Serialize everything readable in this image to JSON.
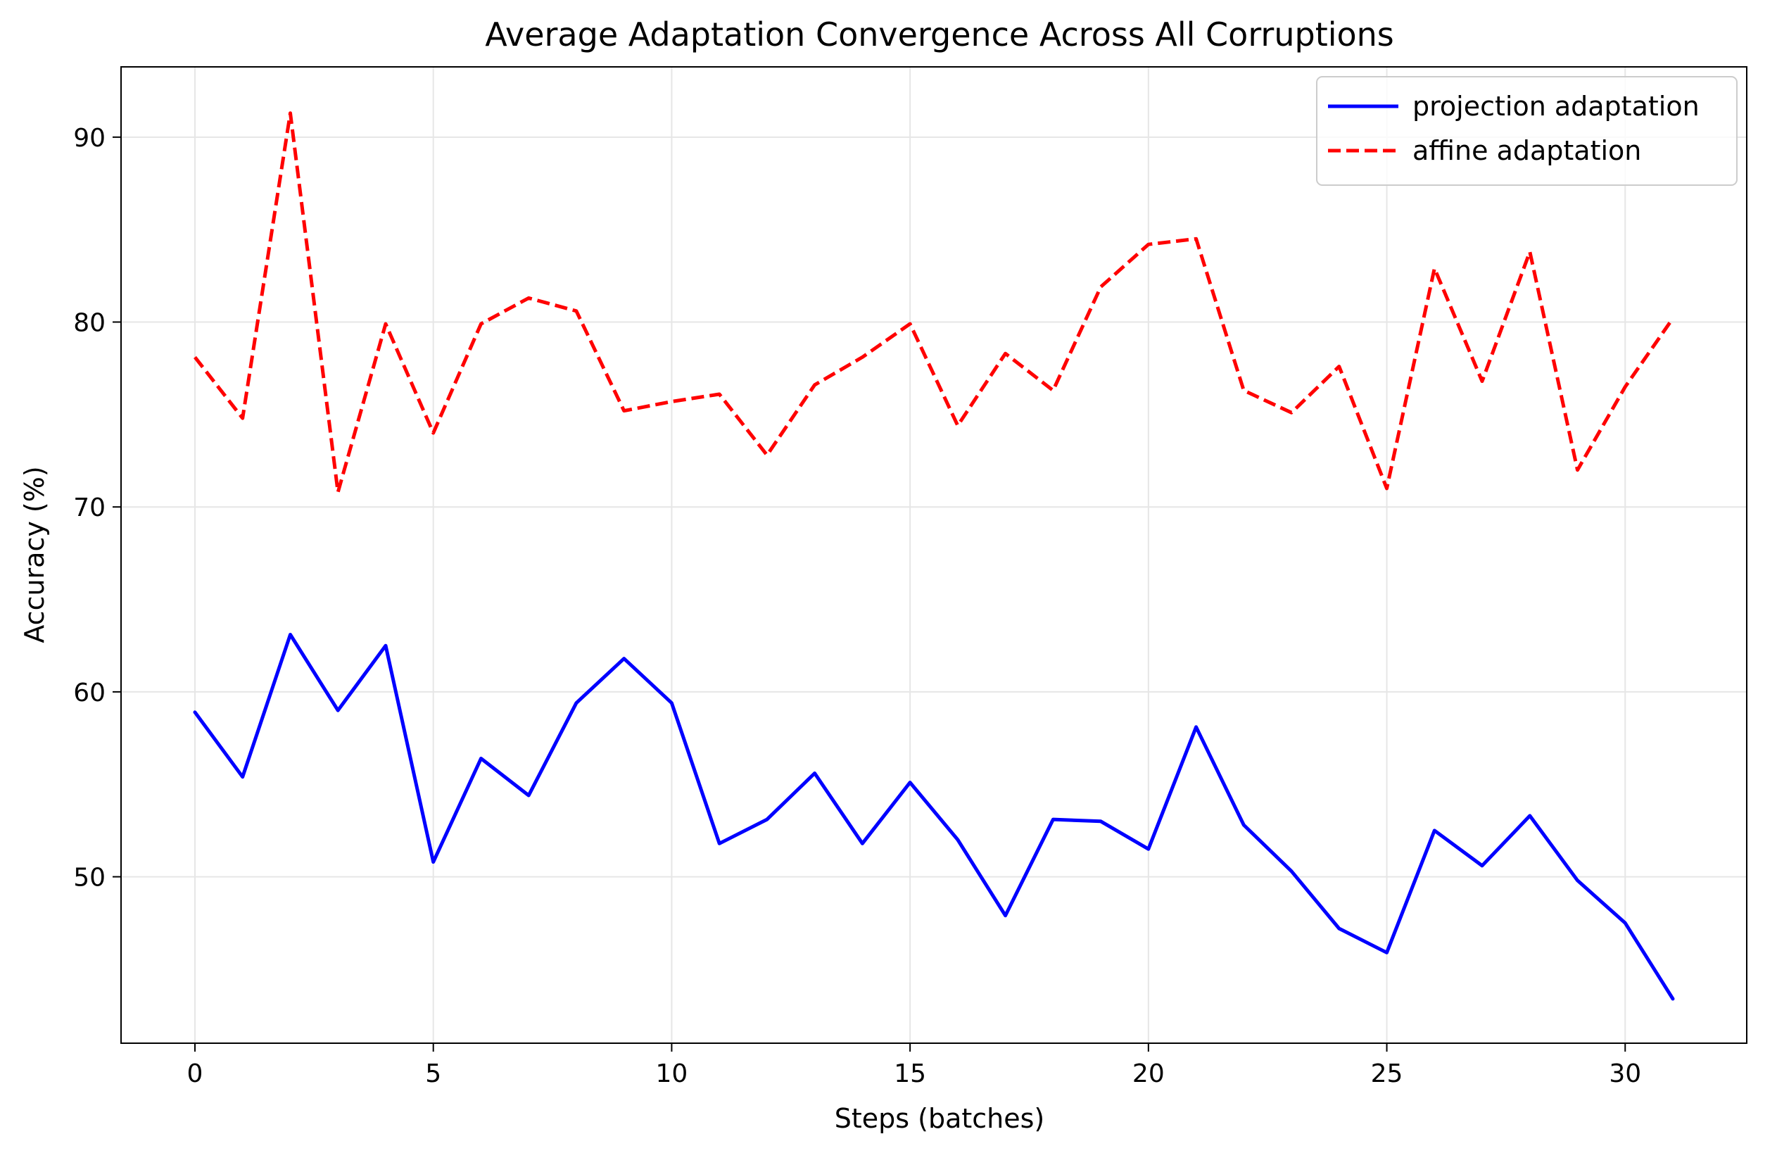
{
  "chart_data": {
    "type": "line",
    "title": "Average Adaptation Convergence Across All Corruptions",
    "xlabel": "Steps (batches)",
    "ylabel": "Accuracy (%)",
    "xlim": [
      -1.55,
      32.55
    ],
    "ylim": [
      41.0,
      93.8
    ],
    "xticks": [
      0,
      5,
      10,
      15,
      20,
      25,
      30
    ],
    "yticks": [
      50,
      60,
      70,
      80,
      90
    ],
    "grid": true,
    "legend_position": "top-right",
    "x": [
      0,
      1,
      2,
      3,
      4,
      5,
      6,
      7,
      8,
      9,
      10,
      11,
      12,
      13,
      14,
      15,
      16,
      17,
      18,
      19,
      20,
      21,
      22,
      23,
      24,
      25,
      26,
      27,
      28,
      29,
      30,
      31
    ],
    "series": [
      {
        "name": "projection adaptation",
        "color": "#0000ff",
        "style": "solid",
        "values": [
          58.9,
          55.4,
          63.1,
          59.0,
          62.5,
          50.8,
          56.4,
          54.4,
          59.4,
          61.8,
          59.4,
          51.8,
          53.1,
          55.6,
          51.8,
          55.1,
          52.0,
          47.9,
          53.1,
          53.0,
          51.5,
          58.1,
          52.8,
          50.3,
          47.2,
          45.9,
          52.5,
          50.6,
          53.3,
          49.8,
          47.5,
          43.4
        ]
      },
      {
        "name": "affine adaptation",
        "color": "#ff0000",
        "style": "dashed",
        "values": [
          78.1,
          74.8,
          91.3,
          70.8,
          79.9,
          74.0,
          79.9,
          81.3,
          80.6,
          75.2,
          75.7,
          76.1,
          72.8,
          76.6,
          78.1,
          79.9,
          74.4,
          78.3,
          76.3,
          81.9,
          84.2,
          84.5,
          76.3,
          75.1,
          77.6,
          71.0,
          82.9,
          76.8,
          83.8,
          72.0,
          76.5,
          80.2
        ]
      }
    ]
  }
}
